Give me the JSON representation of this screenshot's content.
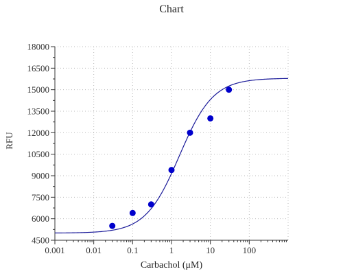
{
  "chart_data": {
    "type": "scatter",
    "title": "Chart",
    "xlabel": "Carbachol (μM)",
    "ylabel": "RFU",
    "x_scale": "log",
    "xlim": [
      0.001,
      1000
    ],
    "ylim": [
      4500,
      18000
    ],
    "x_ticks": [
      0.001,
      0.01,
      0.1,
      1,
      10,
      100
    ],
    "x_tick_labels": [
      "0.001",
      "0.01",
      "0.1",
      "1",
      "10",
      "100"
    ],
    "y_ticks": [
      4500,
      6000,
      7500,
      9000,
      10500,
      12000,
      13500,
      15000,
      16500,
      18000
    ],
    "y_tick_labels": [
      "4500",
      "6000",
      "7500",
      "9000",
      "10500",
      "12000",
      "13500",
      "15000",
      "16500",
      "18000"
    ],
    "grid": true,
    "series": [
      {
        "type": "scatter",
        "x": [
          0.03,
          0.1,
          0.3,
          1,
          3,
          10,
          30
        ],
        "y": [
          5500,
          6400,
          7000,
          9400,
          12000,
          13000,
          15000
        ]
      },
      {
        "type": "line",
        "fit": "4PL",
        "bottom": 5000,
        "top": 15800,
        "ec50": 1.6,
        "hill": 1.0
      }
    ],
    "colors": {
      "points": "#0000cc",
      "curve": "#1a1a99",
      "axis": "#333333",
      "grid": "#bbbbbb"
    }
  }
}
